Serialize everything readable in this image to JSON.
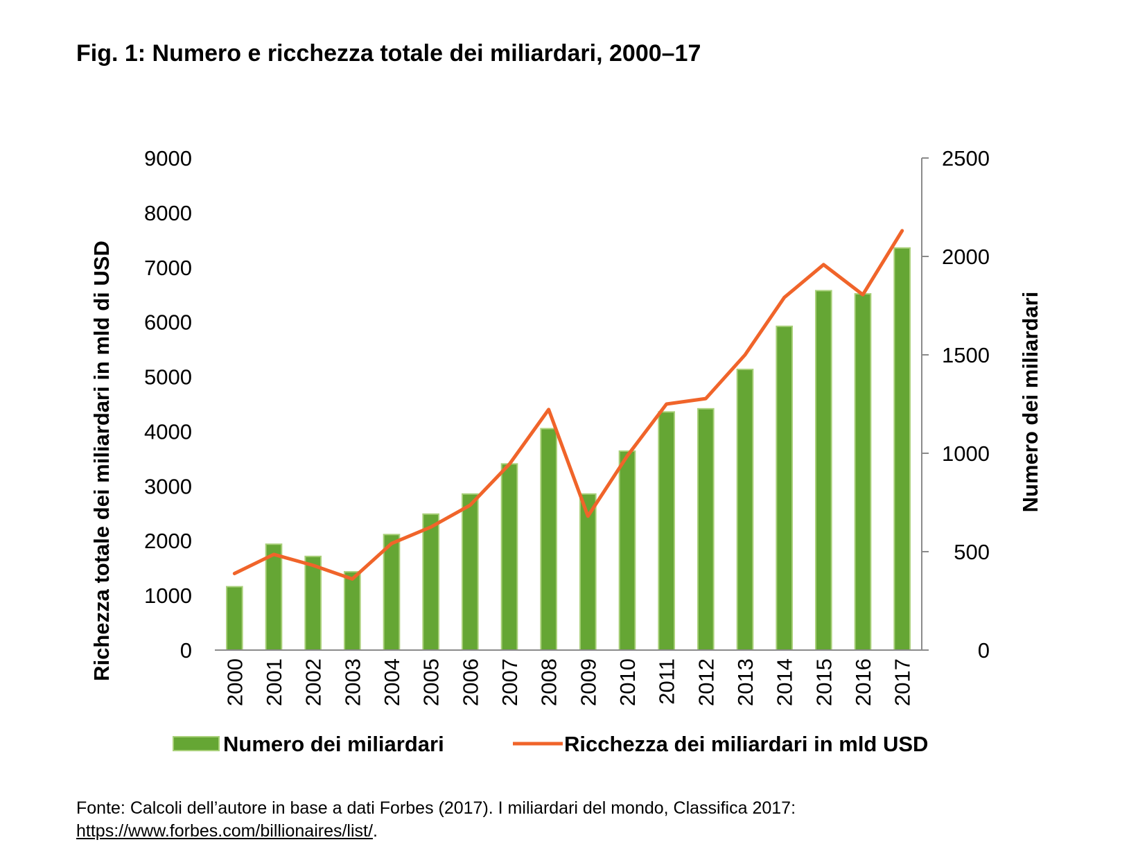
{
  "title": "Fig. 1: Numero e ricchezza totale dei miliardari, 2000–17",
  "chart_data": {
    "type": "bar",
    "categories": [
      "2000",
      "2001",
      "2002",
      "2003",
      "2004",
      "2005",
      "2006",
      "2007",
      "2008",
      "2009",
      "2010",
      "2011",
      "2012",
      "2013",
      "2014",
      "2015",
      "2016",
      "2017"
    ],
    "series": [
      {
        "name": "Numero dei miliardari",
        "type": "bar",
        "axis": "right",
        "color": "#65a634",
        "edge_color": "#a9d07a",
        "values": [
          322,
          538,
          476,
          398,
          587,
          691,
          793,
          946,
          1125,
          793,
          1011,
          1210,
          1226,
          1426,
          1645,
          1826,
          1810,
          2043
        ]
      },
      {
        "name": "Ricchezza dei miliardari in mld USD",
        "type": "line",
        "axis": "left",
        "color": "#f0642a",
        "values": [
          1400,
          1750,
          1550,
          1300,
          1950,
          2250,
          2650,
          3400,
          4400,
          2450,
          3550,
          4500,
          4600,
          5400,
          6450,
          7050,
          6500,
          7670
        ]
      }
    ],
    "left_axis": {
      "label": "Richezza totale dei miliardari in mld di USD",
      "ylim": [
        0,
        9000
      ],
      "ticks": [
        "0",
        "1000",
        "2000",
        "3000",
        "4000",
        "5000",
        "6000",
        "7000",
        "8000",
        "9000"
      ]
    },
    "right_axis": {
      "label": "Numero dei miliardari",
      "ylim": [
        0,
        2500
      ],
      "ticks": [
        "0",
        "500",
        "1000",
        "1500",
        "2000",
        "2500"
      ]
    },
    "legend": {
      "position": "bottom",
      "bar_label": "Numero dei miliardari",
      "line_label": "Ricchezza dei miliardari in mld USD"
    },
    "grid": false
  },
  "footer": {
    "source": "Fonte: Calcoli dell’autore in base a dati Forbes (2017). I miliardari del mondo, Classifica 2017:",
    "link_text": "https://www.forbes.com/billionaires/list/",
    "after_link": "."
  }
}
